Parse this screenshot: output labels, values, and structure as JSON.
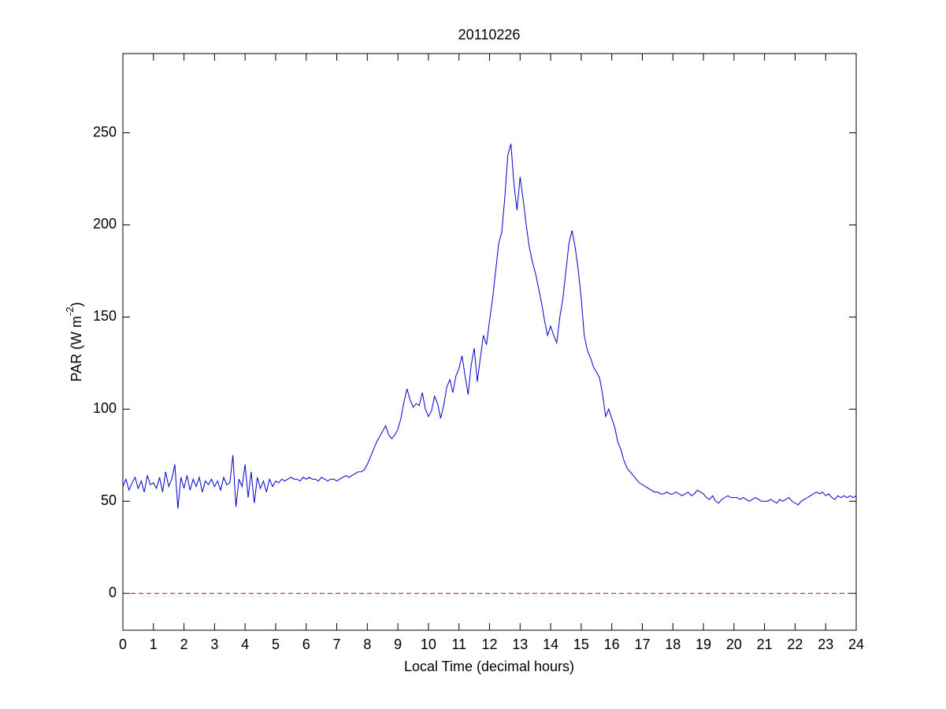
{
  "chart_data": {
    "type": "line",
    "title": "20110226",
    "xlabel": "Local Time (decimal hours)",
    "ylabel_parts": [
      "PAR (W m",
      "-2",
      ")"
    ],
    "color": "#0000cc",
    "hline": {
      "value": 0,
      "color": "#cc0000"
    },
    "xlim": [
      0,
      24
    ],
    "ylim": [
      -20,
      293
    ],
    "xticks": [
      0,
      1,
      2,
      3,
      4,
      5,
      6,
      7,
      8,
      9,
      10,
      11,
      12,
      13,
      14,
      15,
      16,
      17,
      18,
      19,
      20,
      21,
      22,
      23,
      24
    ],
    "yticks": [
      0,
      50,
      100,
      150,
      200,
      250
    ],
    "x": [
      0,
      0.1,
      0.2,
      0.3,
      0.4,
      0.5,
      0.6,
      0.7,
      0.8,
      0.9,
      1,
      1.1,
      1.2,
      1.3,
      1.4,
      1.5,
      1.6,
      1.7,
      1.8,
      1.9,
      2,
      2.1,
      2.2,
      2.3,
      2.4,
      2.5,
      2.6,
      2.7,
      2.8,
      2.9,
      3,
      3.1,
      3.2,
      3.3,
      3.4,
      3.5,
      3.6,
      3.7,
      3.8,
      3.9,
      4,
      4.1,
      4.2,
      4.3,
      4.4,
      4.5,
      4.6,
      4.7,
      4.8,
      4.9,
      5,
      5.1,
      5.2,
      5.3,
      5.4,
      5.5,
      5.6,
      5.7,
      5.8,
      5.9,
      6,
      6.1,
      6.2,
      6.3,
      6.4,
      6.5,
      6.6,
      6.7,
      6.8,
      6.9,
      7,
      7.1,
      7.2,
      7.3,
      7.4,
      7.5,
      7.6,
      7.7,
      7.8,
      7.9,
      8,
      8.1,
      8.2,
      8.3,
      8.4,
      8.5,
      8.6,
      8.7,
      8.8,
      8.9,
      9,
      9.1,
      9.2,
      9.3,
      9.4,
      9.5,
      9.6,
      9.7,
      9.8,
      9.9,
      10,
      10.1,
      10.2,
      10.3,
      10.4,
      10.5,
      10.6,
      10.7,
      10.8,
      10.9,
      11,
      11.1,
      11.2,
      11.3,
      11.4,
      11.5,
      11.6,
      11.7,
      11.8,
      11.9,
      12,
      12.1,
      12.2,
      12.3,
      12.4,
      12.5,
      12.6,
      12.7,
      12.8,
      12.9,
      13,
      13.1,
      13.2,
      13.3,
      13.4,
      13.5,
      13.6,
      13.7,
      13.8,
      13.9,
      14,
      14.1,
      14.2,
      14.3,
      14.4,
      14.5,
      14.6,
      14.7,
      14.8,
      14.9,
      15,
      15.1,
      15.2,
      15.3,
      15.4,
      15.5,
      15.6,
      15.7,
      15.8,
      15.9,
      16,
      16.1,
      16.2,
      16.3,
      16.4,
      16.5,
      16.6,
      16.7,
      16.8,
      16.9,
      17,
      17.1,
      17.2,
      17.3,
      17.4,
      17.5,
      17.6,
      17.7,
      17.8,
      17.9,
      18,
      18.1,
      18.2,
      18.3,
      18.4,
      18.5,
      18.6,
      18.7,
      18.8,
      18.9,
      19,
      19.1,
      19.2,
      19.3,
      19.4,
      19.5,
      19.6,
      19.7,
      19.8,
      19.9,
      20,
      20.1,
      20.2,
      20.3,
      20.4,
      20.5,
      20.6,
      20.7,
      20.8,
      20.9,
      21,
      21.1,
      21.2,
      21.3,
      21.4,
      21.5,
      21.6,
      21.7,
      21.8,
      21.9,
      22,
      22.1,
      22.2,
      22.3,
      22.4,
      22.5,
      22.6,
      22.7,
      22.8,
      22.9,
      23,
      23.1,
      23.2,
      23.3,
      23.4,
      23.5,
      23.6,
      23.7,
      23.8,
      23.9,
      24
    ],
    "values": [
      58,
      62,
      56,
      60,
      63,
      57,
      61,
      55,
      64,
      59,
      60,
      57,
      63,
      55,
      66,
      58,
      62,
      70,
      46,
      63,
      57,
      64,
      56,
      62,
      58,
      63,
      55,
      61,
      59,
      62,
      58,
      61,
      56,
      63,
      59,
      60,
      75,
      47,
      62,
      58,
      70,
      52,
      66,
      49,
      63,
      57,
      61,
      55,
      62,
      58,
      61,
      60,
      62,
      61,
      62,
      63,
      62,
      62,
      61,
      63,
      62,
      63,
      62,
      62,
      61,
      63,
      62,
      61,
      62,
      62,
      61,
      62,
      63,
      64,
      63,
      64,
      65,
      66,
      66,
      67,
      70,
      74,
      78,
      82,
      85,
      88,
      91,
      86,
      84,
      86,
      89,
      95,
      104,
      111,
      105,
      101,
      103,
      102,
      109,
      100,
      96,
      99,
      107,
      103,
      95,
      102,
      112,
      116,
      109,
      118,
      122,
      129,
      118,
      108,
      124,
      133,
      115,
      128,
      140,
      135,
      148,
      160,
      175,
      190,
      196,
      215,
      238,
      244,
      222,
      208,
      226,
      214,
      200,
      188,
      180,
      174,
      166,
      158,
      148,
      140,
      145,
      140,
      136,
      150,
      160,
      175,
      190,
      197,
      188,
      176,
      160,
      140,
      132,
      128,
      123,
      120,
      117,
      108,
      96,
      100,
      95,
      90,
      82,
      78,
      72,
      68,
      66,
      64,
      62,
      60,
      59,
      58,
      57,
      56,
      55,
      55,
      54,
      54,
      55,
      54,
      54,
      55,
      54,
      53,
      54,
      55,
      53,
      54,
      56,
      55,
      54,
      52,
      51,
      53,
      50,
      49,
      51,
      52,
      53,
      52,
      52,
      52,
      51,
      52,
      51,
      50,
      51,
      52,
      51,
      50,
      50,
      50,
      51,
      50,
      49,
      51,
      50,
      51,
      52,
      50,
      49,
      48,
      50,
      51,
      52,
      53,
      54,
      55,
      54,
      55,
      53,
      54,
      52,
      51,
      53,
      52,
      53,
      52,
      53,
      52,
      53
    ]
  }
}
